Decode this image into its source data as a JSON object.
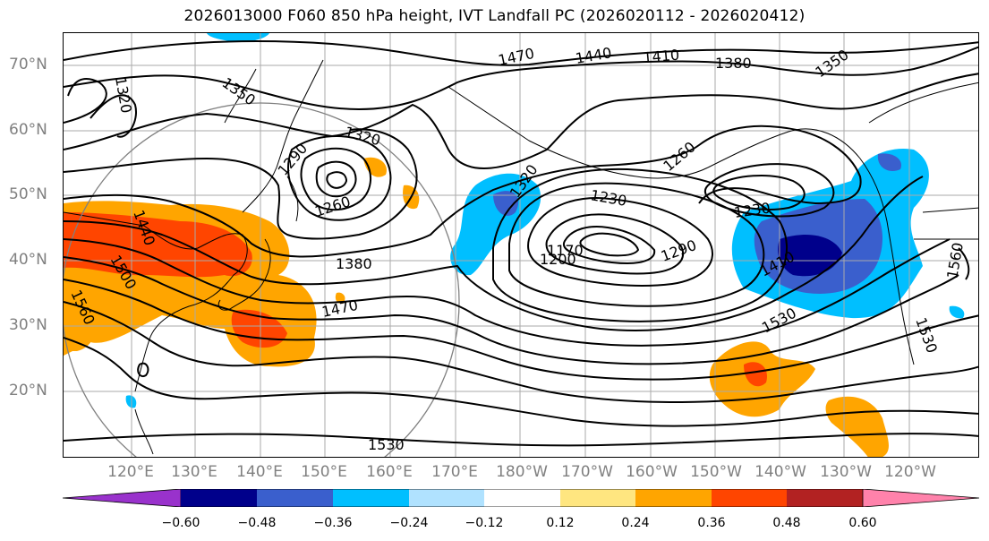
{
  "title": "2026013000 F060 850 hPa height, IVT Landfall PC (2026020112 - 2026020412)",
  "lat_labels": [
    "70°N",
    "60°N",
    "50°N",
    "40°N",
    "30°N",
    "20°N"
  ],
  "lon_labels": [
    "120°E",
    "130°E",
    "140°E",
    "150°E",
    "160°E",
    "170°E",
    "180°W",
    "170°W",
    "160°W",
    "150°W",
    "140°W",
    "130°W",
    "120°W"
  ],
  "contour_labels": [
    "1470",
    "1440",
    "1410",
    "1380",
    "1350",
    "1320",
    "1350",
    "1320",
    "1290",
    "1260",
    "1320",
    "1260",
    "1230",
    "1230",
    "1170",
    "1200",
    "1290",
    "1410",
    "1530",
    "1380",
    "1470",
    "1440",
    "1500",
    "1560",
    "1530",
    "1560",
    "1530"
  ],
  "colorbar": {
    "ticks": [
      "−0.60",
      "−0.48",
      "−0.36",
      "−0.24",
      "−0.12",
      "0.12",
      "0.24",
      "0.36",
      "0.48",
      "0.60"
    ],
    "colors": [
      "#9932cc",
      "#00008b",
      "#3a5fcd",
      "#00bfff",
      "#b0e2ff",
      "#ffffff",
      "#ffe680",
      "#ffa500",
      "#ff4500",
      "#b22222",
      "#ff82ab"
    ]
  }
}
